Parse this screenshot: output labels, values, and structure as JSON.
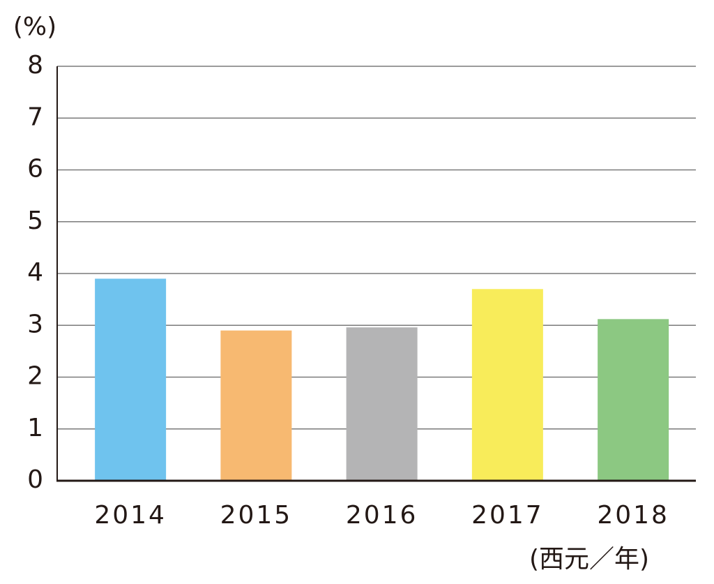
{
  "chart_data": {
    "type": "bar",
    "y_label": "(%)",
    "x_label": "(西元／年)",
    "categories": [
      "2014",
      "2015",
      "2016",
      "2017",
      "2018"
    ],
    "values": [
      3.9,
      2.9,
      2.96,
      3.7,
      3.12
    ],
    "colors": [
      "#6fc3ee",
      "#f7b971",
      "#b4b4b5",
      "#f8ec5a",
      "#8cc882"
    ],
    "ylim": [
      0,
      8
    ],
    "yticks": [
      0,
      1,
      2,
      3,
      4,
      5,
      6,
      7,
      8
    ],
    "grid": true
  }
}
